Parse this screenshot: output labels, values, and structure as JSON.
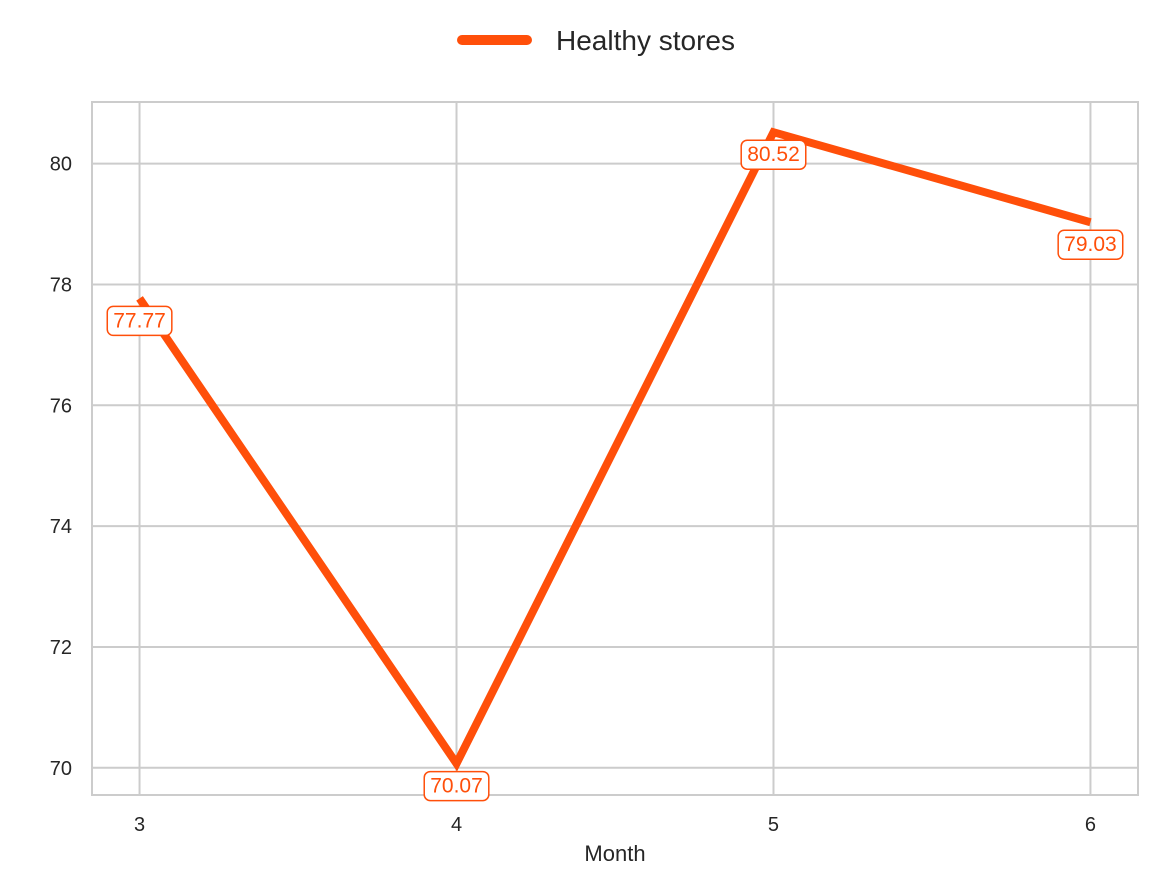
{
  "chart_data": {
    "type": "line",
    "title": "",
    "xlabel": "Month",
    "ylabel": "",
    "x": [
      3,
      4,
      5,
      6
    ],
    "xticks": [
      3,
      4,
      5,
      6
    ],
    "yticks": [
      70,
      72,
      74,
      76,
      78,
      80
    ],
    "xlim": [
      2.85,
      6.15
    ],
    "ylim": [
      69.55,
      81.02
    ],
    "grid": true,
    "legend_position": "top-center",
    "series": [
      {
        "name": "Healthy stores",
        "color": "#FF4F0A",
        "values": [
          77.77,
          70.07,
          80.52,
          79.03
        ],
        "data_labels": [
          "77.77",
          "70.07",
          "80.52",
          "79.03"
        ]
      }
    ]
  }
}
